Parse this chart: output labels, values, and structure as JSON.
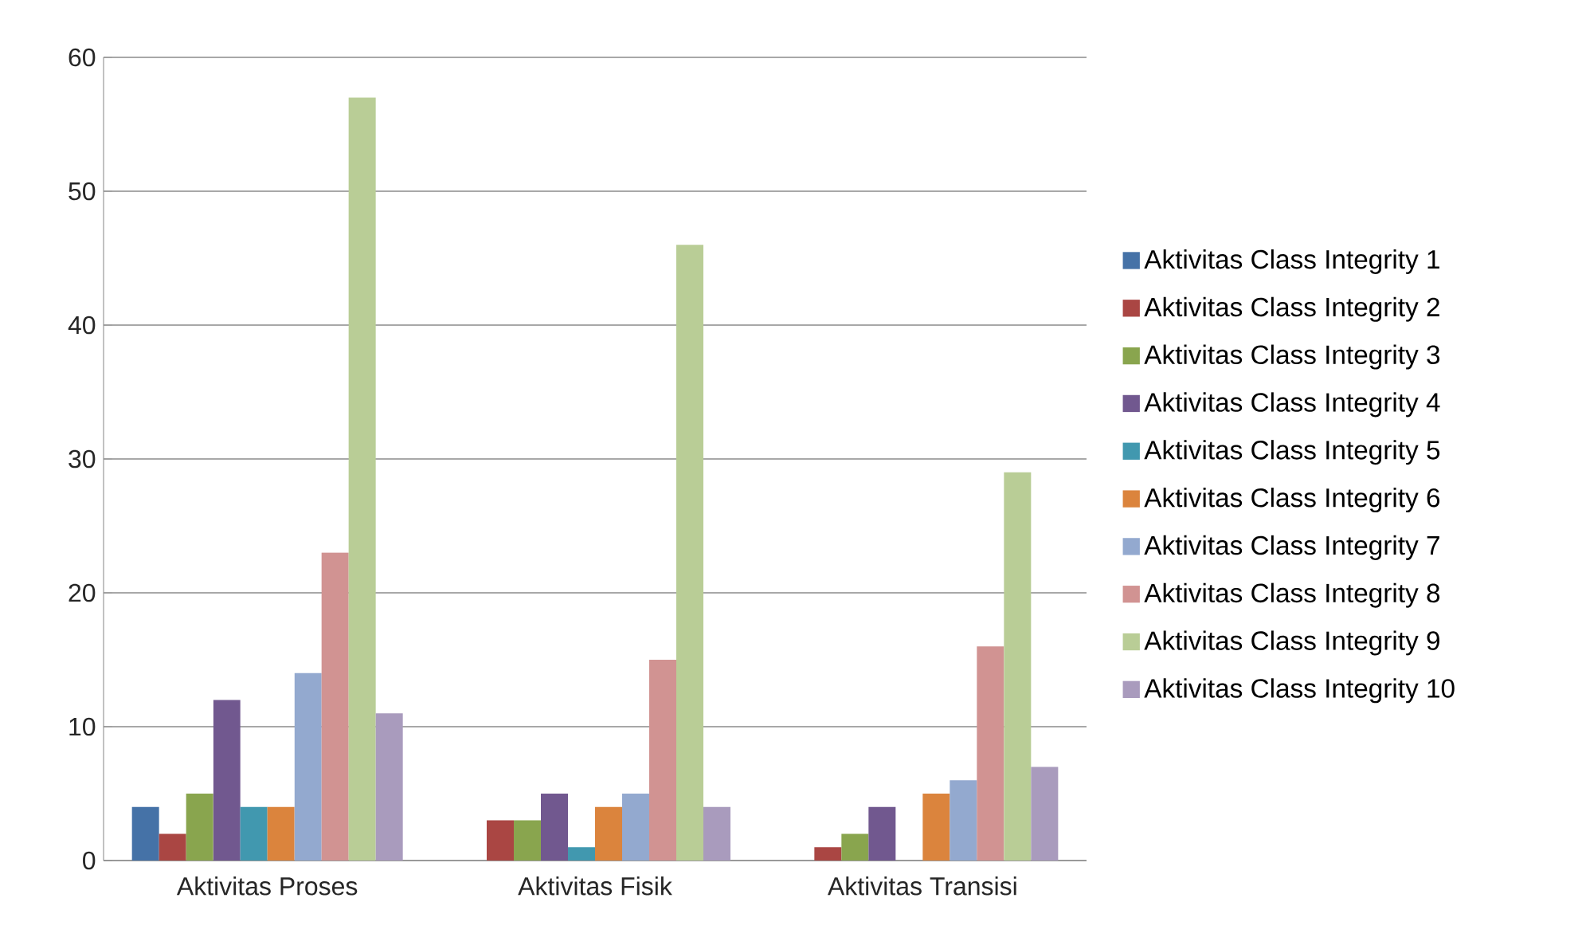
{
  "chart_data": {
    "type": "bar",
    "categories": [
      "Aktivitas Proses",
      "Aktivitas Fisik",
      "Aktivitas Transisi"
    ],
    "series": [
      {
        "name": "Aktivitas Class Integrity 1",
        "color": "#4572a7",
        "values": [
          4,
          0,
          0
        ]
      },
      {
        "name": "Aktivitas Class Integrity 2",
        "color": "#aa4643",
        "values": [
          2,
          3,
          1
        ]
      },
      {
        "name": "Aktivitas Class Integrity 3",
        "color": "#89a54e",
        "values": [
          5,
          3,
          2
        ]
      },
      {
        "name": "Aktivitas Class Integrity 4",
        "color": "#71588f",
        "values": [
          12,
          5,
          4
        ]
      },
      {
        "name": "Aktivitas Class Integrity 5",
        "color": "#4198af",
        "values": [
          4,
          1,
          0
        ]
      },
      {
        "name": "Aktivitas Class Integrity 6",
        "color": "#db843d",
        "values": [
          4,
          4,
          5
        ]
      },
      {
        "name": "Aktivitas Class Integrity 7",
        "color": "#93a9cf",
        "values": [
          14,
          5,
          6
        ]
      },
      {
        "name": "Aktivitas Class Integrity 8",
        "color": "#d19392",
        "values": [
          23,
          15,
          16
        ]
      },
      {
        "name": "Aktivitas Class Integrity 9",
        "color": "#b9cd96",
        "values": [
          57,
          46,
          29
        ]
      },
      {
        "name": "Aktivitas Class Integrity 10",
        "color": "#a99bbd",
        "values": [
          11,
          4,
          7
        ]
      }
    ],
    "ylim": [
      0,
      60
    ],
    "yticks": [
      0,
      10,
      20,
      30,
      40,
      50,
      60
    ],
    "grid": "y",
    "legend": "right"
  }
}
